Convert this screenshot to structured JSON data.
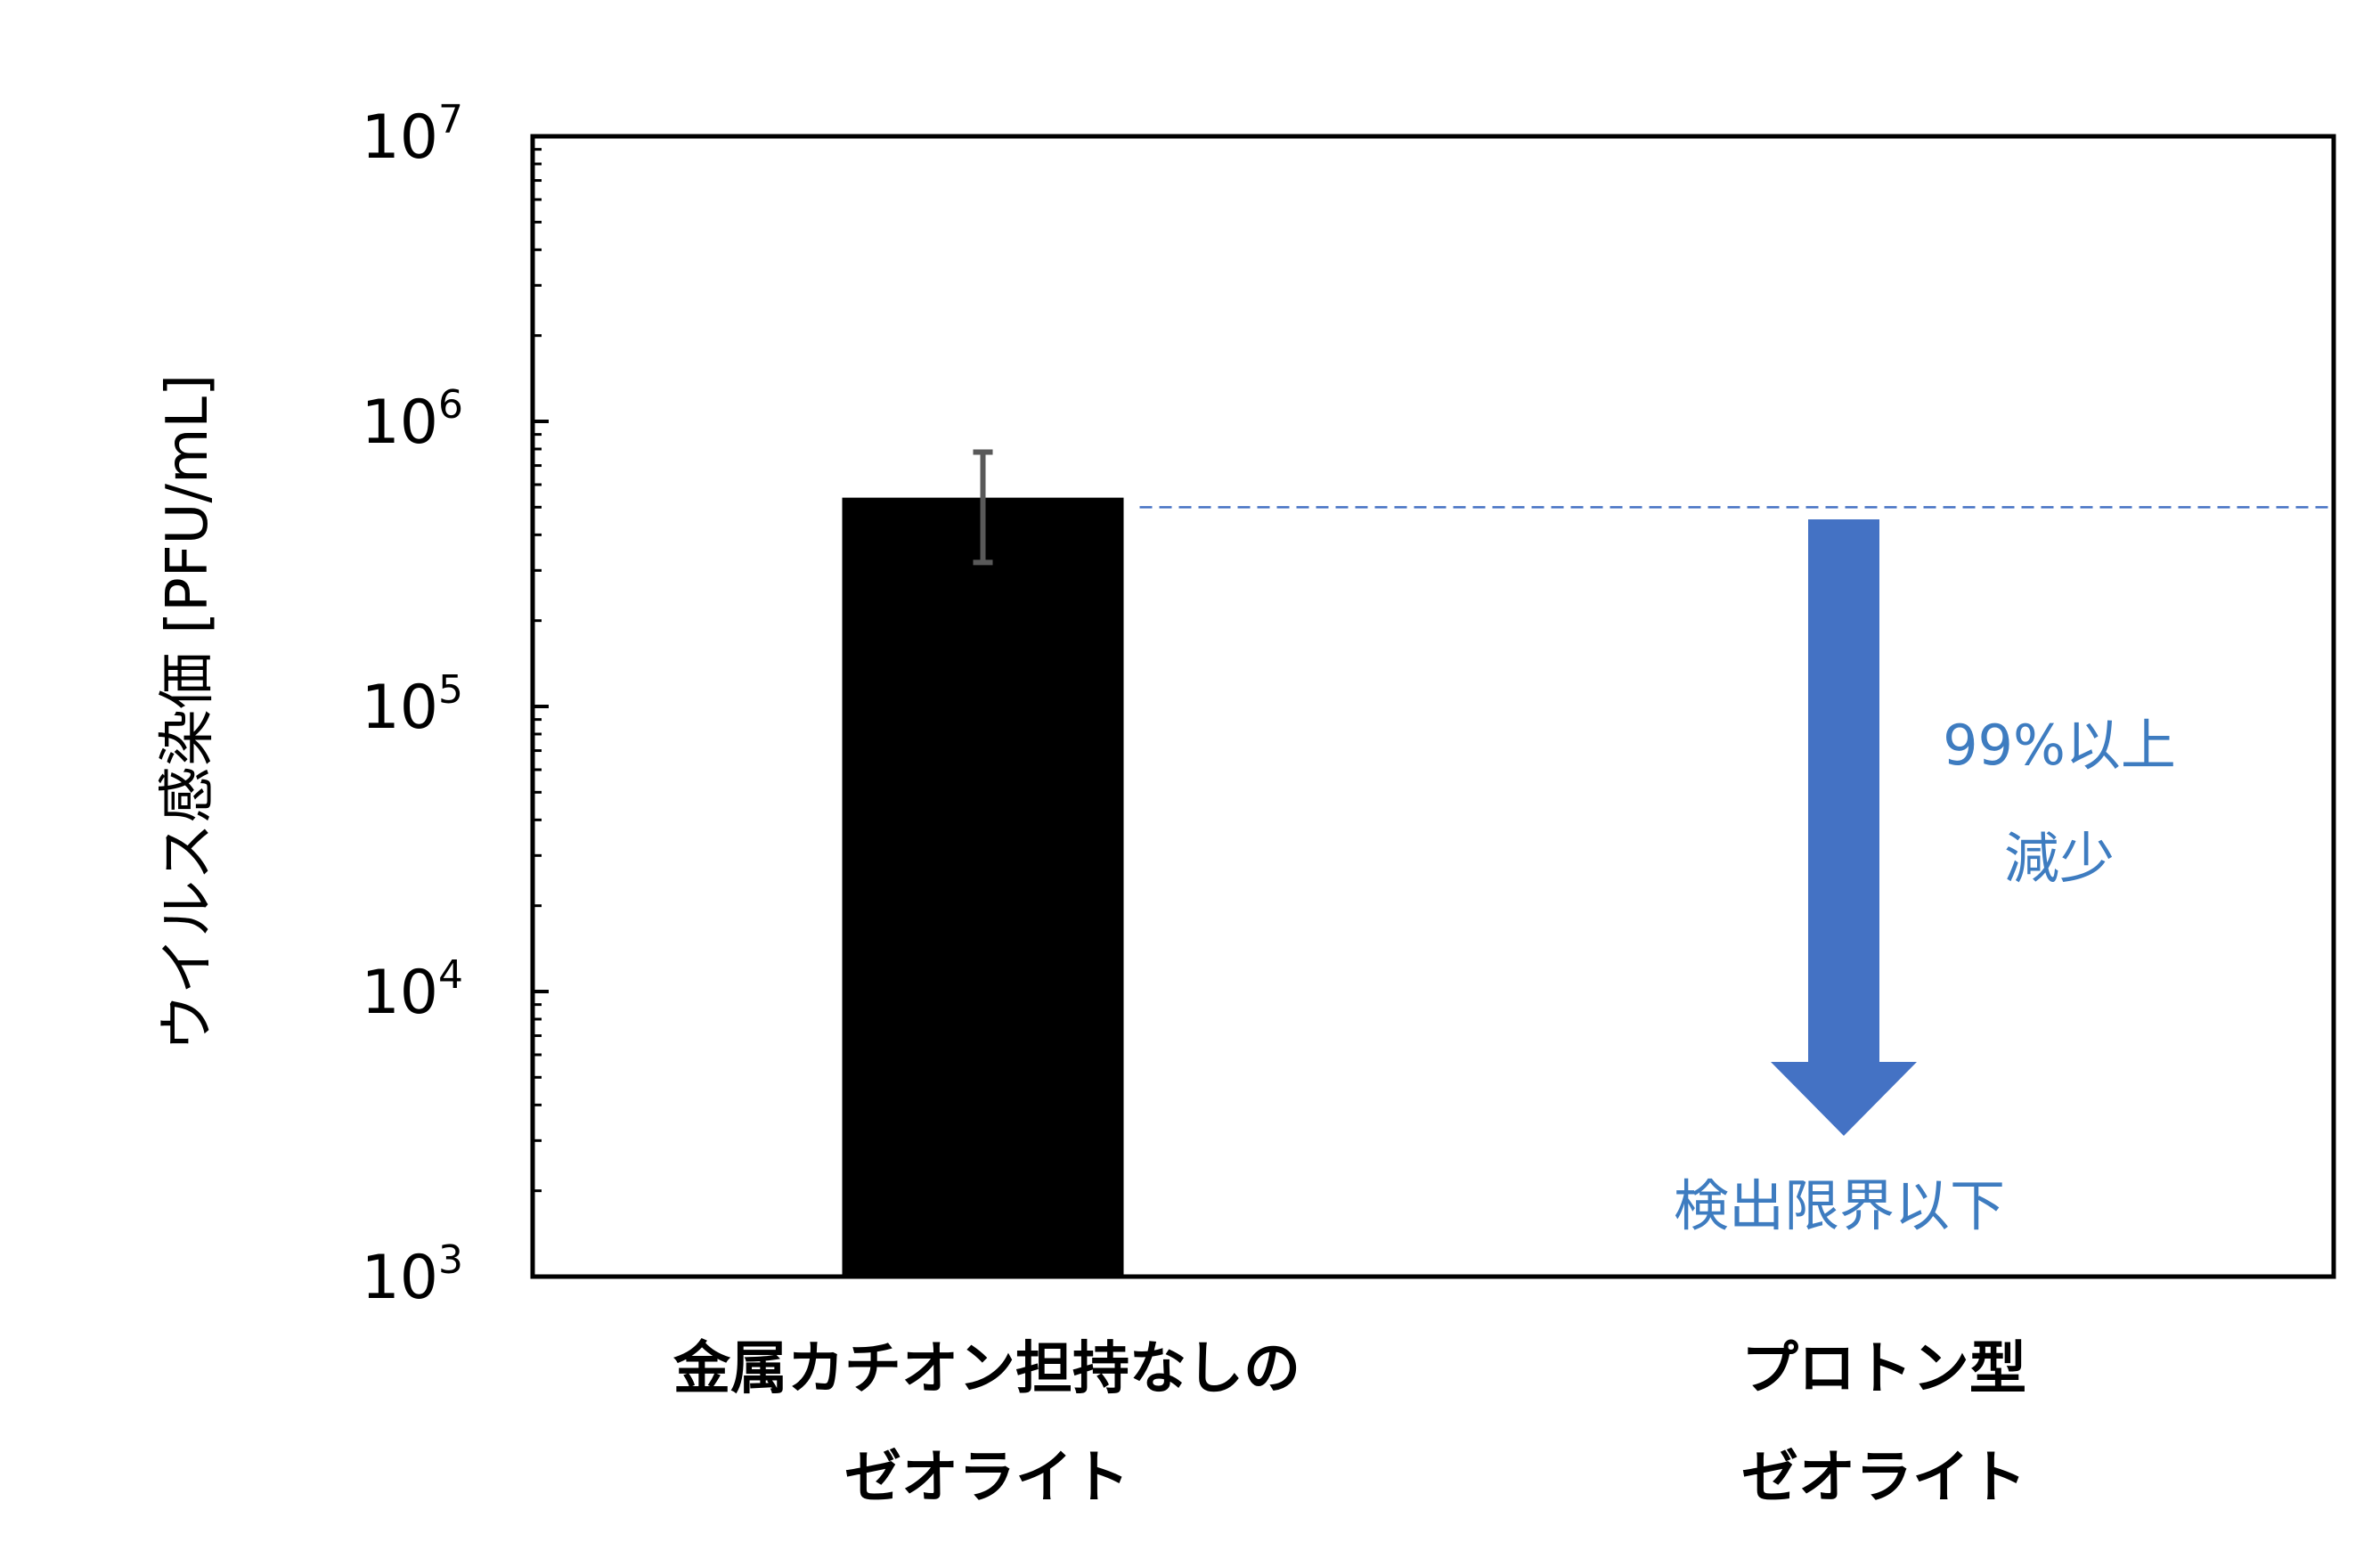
{
  "chart_data": {
    "type": "bar",
    "ylabel": "ウイルス感染価 [PFU/mL]",
    "yscale": "log",
    "ylim": [
      1000,
      10000000
    ],
    "yticks": [
      {
        "base": "10",
        "exp": "3"
      },
      {
        "base": "10",
        "exp": "4"
      },
      {
        "base": "10",
        "exp": "5"
      },
      {
        "base": "10",
        "exp": "6"
      },
      {
        "base": "10",
        "exp": "7"
      }
    ],
    "grid": false,
    "legend": "none",
    "categories": [
      {
        "line1": "金属カチオン担持なしの",
        "line2": "ゼオライト"
      },
      {
        "line1": "プロトン型",
        "line2": "ゼオライト"
      }
    ],
    "values": [
      540000,
      null
    ],
    "error": {
      "low": 320000,
      "high": 780000
    },
    "reference_value": 500000,
    "annotations": {
      "reduction_line1": "99%以上",
      "reduction_line2": "減少",
      "below_limit": "検出限界以下"
    },
    "colors": {
      "bar": "#000000",
      "error_bar": "#595959",
      "accent": "#4472C4",
      "annotation_text": "#3E7CC0",
      "axis": "#000000"
    }
  }
}
